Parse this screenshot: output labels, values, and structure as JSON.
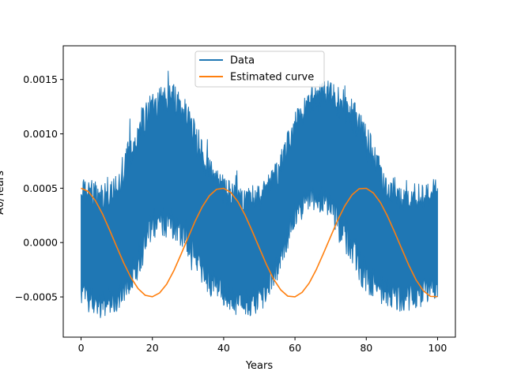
{
  "chart_data": {
    "type": "line",
    "title": "",
    "xlabel": "Years",
    "ylabel": "A0/Years",
    "xlim": [
      -5,
      105
    ],
    "ylim": [
      -0.00087,
      0.00181
    ],
    "xticks": [
      0,
      20,
      40,
      60,
      80,
      100
    ],
    "xtick_labels": [
      "0",
      "20",
      "40",
      "60",
      "80",
      "100"
    ],
    "yticks": [
      -0.0005,
      0.0,
      0.0005,
      0.001,
      0.0015
    ],
    "ytick_labels": [
      "−0.0005",
      "0.0000",
      "0.0005",
      "0.0010",
      "0.0015"
    ],
    "grid": false,
    "legend_position": "top-center",
    "series": [
      {
        "name": "Data",
        "color": "#1f77b4",
        "kind": "band",
        "x": [
          0,
          5,
          10,
          15,
          20,
          25,
          30,
          35,
          40,
          45,
          50,
          55,
          60,
          65,
          70,
          75,
          80,
          85,
          90,
          95,
          100
        ],
        "upper": [
          0.00062,
          0.00055,
          0.00065,
          0.0011,
          0.0014,
          0.0015,
          0.0013,
          0.00085,
          0.0006,
          0.0005,
          0.00055,
          0.00075,
          0.0012,
          0.00145,
          0.0015,
          0.0014,
          0.0011,
          0.0007,
          0.00055,
          0.00055,
          0.0006
        ],
        "lower": [
          -0.0006,
          -0.0007,
          -0.00065,
          -0.0004,
          0.0,
          5e-05,
          -0.0001,
          -0.00045,
          -0.0006,
          -0.0007,
          -0.00065,
          -0.00035,
          0.00015,
          0.0003,
          0.0002,
          -0.00015,
          -0.0005,
          -0.0006,
          -0.00065,
          -0.0006,
          -0.0005
        ]
      },
      {
        "name": "Estimated curve",
        "color": "#ff7f0e",
        "kind": "line",
        "x": [
          0,
          2,
          4,
          6,
          8,
          10,
          12,
          14,
          16,
          18,
          20,
          22,
          24,
          26,
          28,
          30,
          32,
          34,
          36,
          38,
          40,
          42,
          44,
          46,
          48,
          50,
          52,
          54,
          56,
          58,
          60,
          62,
          64,
          66,
          68,
          70,
          72,
          74,
          76,
          78,
          80,
          82,
          84,
          86,
          88,
          90,
          92,
          94,
          96,
          98,
          100
        ],
        "values": [
          0.0005,
          0.000471,
          0.000387,
          0.000264,
          0.000116,
          -3.9e-05,
          -0.00019,
          -0.000322,
          -0.000424,
          -0.000485,
          -0.000498,
          -0.000464,
          -0.000383,
          -0.00026,
          -0.000111,
          4.4e-05,
          0.000197,
          0.00033,
          0.000431,
          0.00049,
          0.000499,
          0.000461,
          0.000376,
          0.000253,
          0.000106,
          -4.9e-05,
          -0.000202,
          -0.000336,
          -0.000435,
          -0.000493,
          -0.000499,
          -0.000458,
          -0.000372,
          -0.000247,
          -9.9e-05,
          5.5e-05,
          0.000207,
          0.000339,
          0.000439,
          0.000495,
          0.000499,
          0.000456,
          0.000367,
          0.00024,
          9.3e-05,
          -6.1e-05,
          -0.000213,
          -0.000345,
          -0.000443,
          -0.000495,
          -0.000497
        ]
      }
    ]
  }
}
